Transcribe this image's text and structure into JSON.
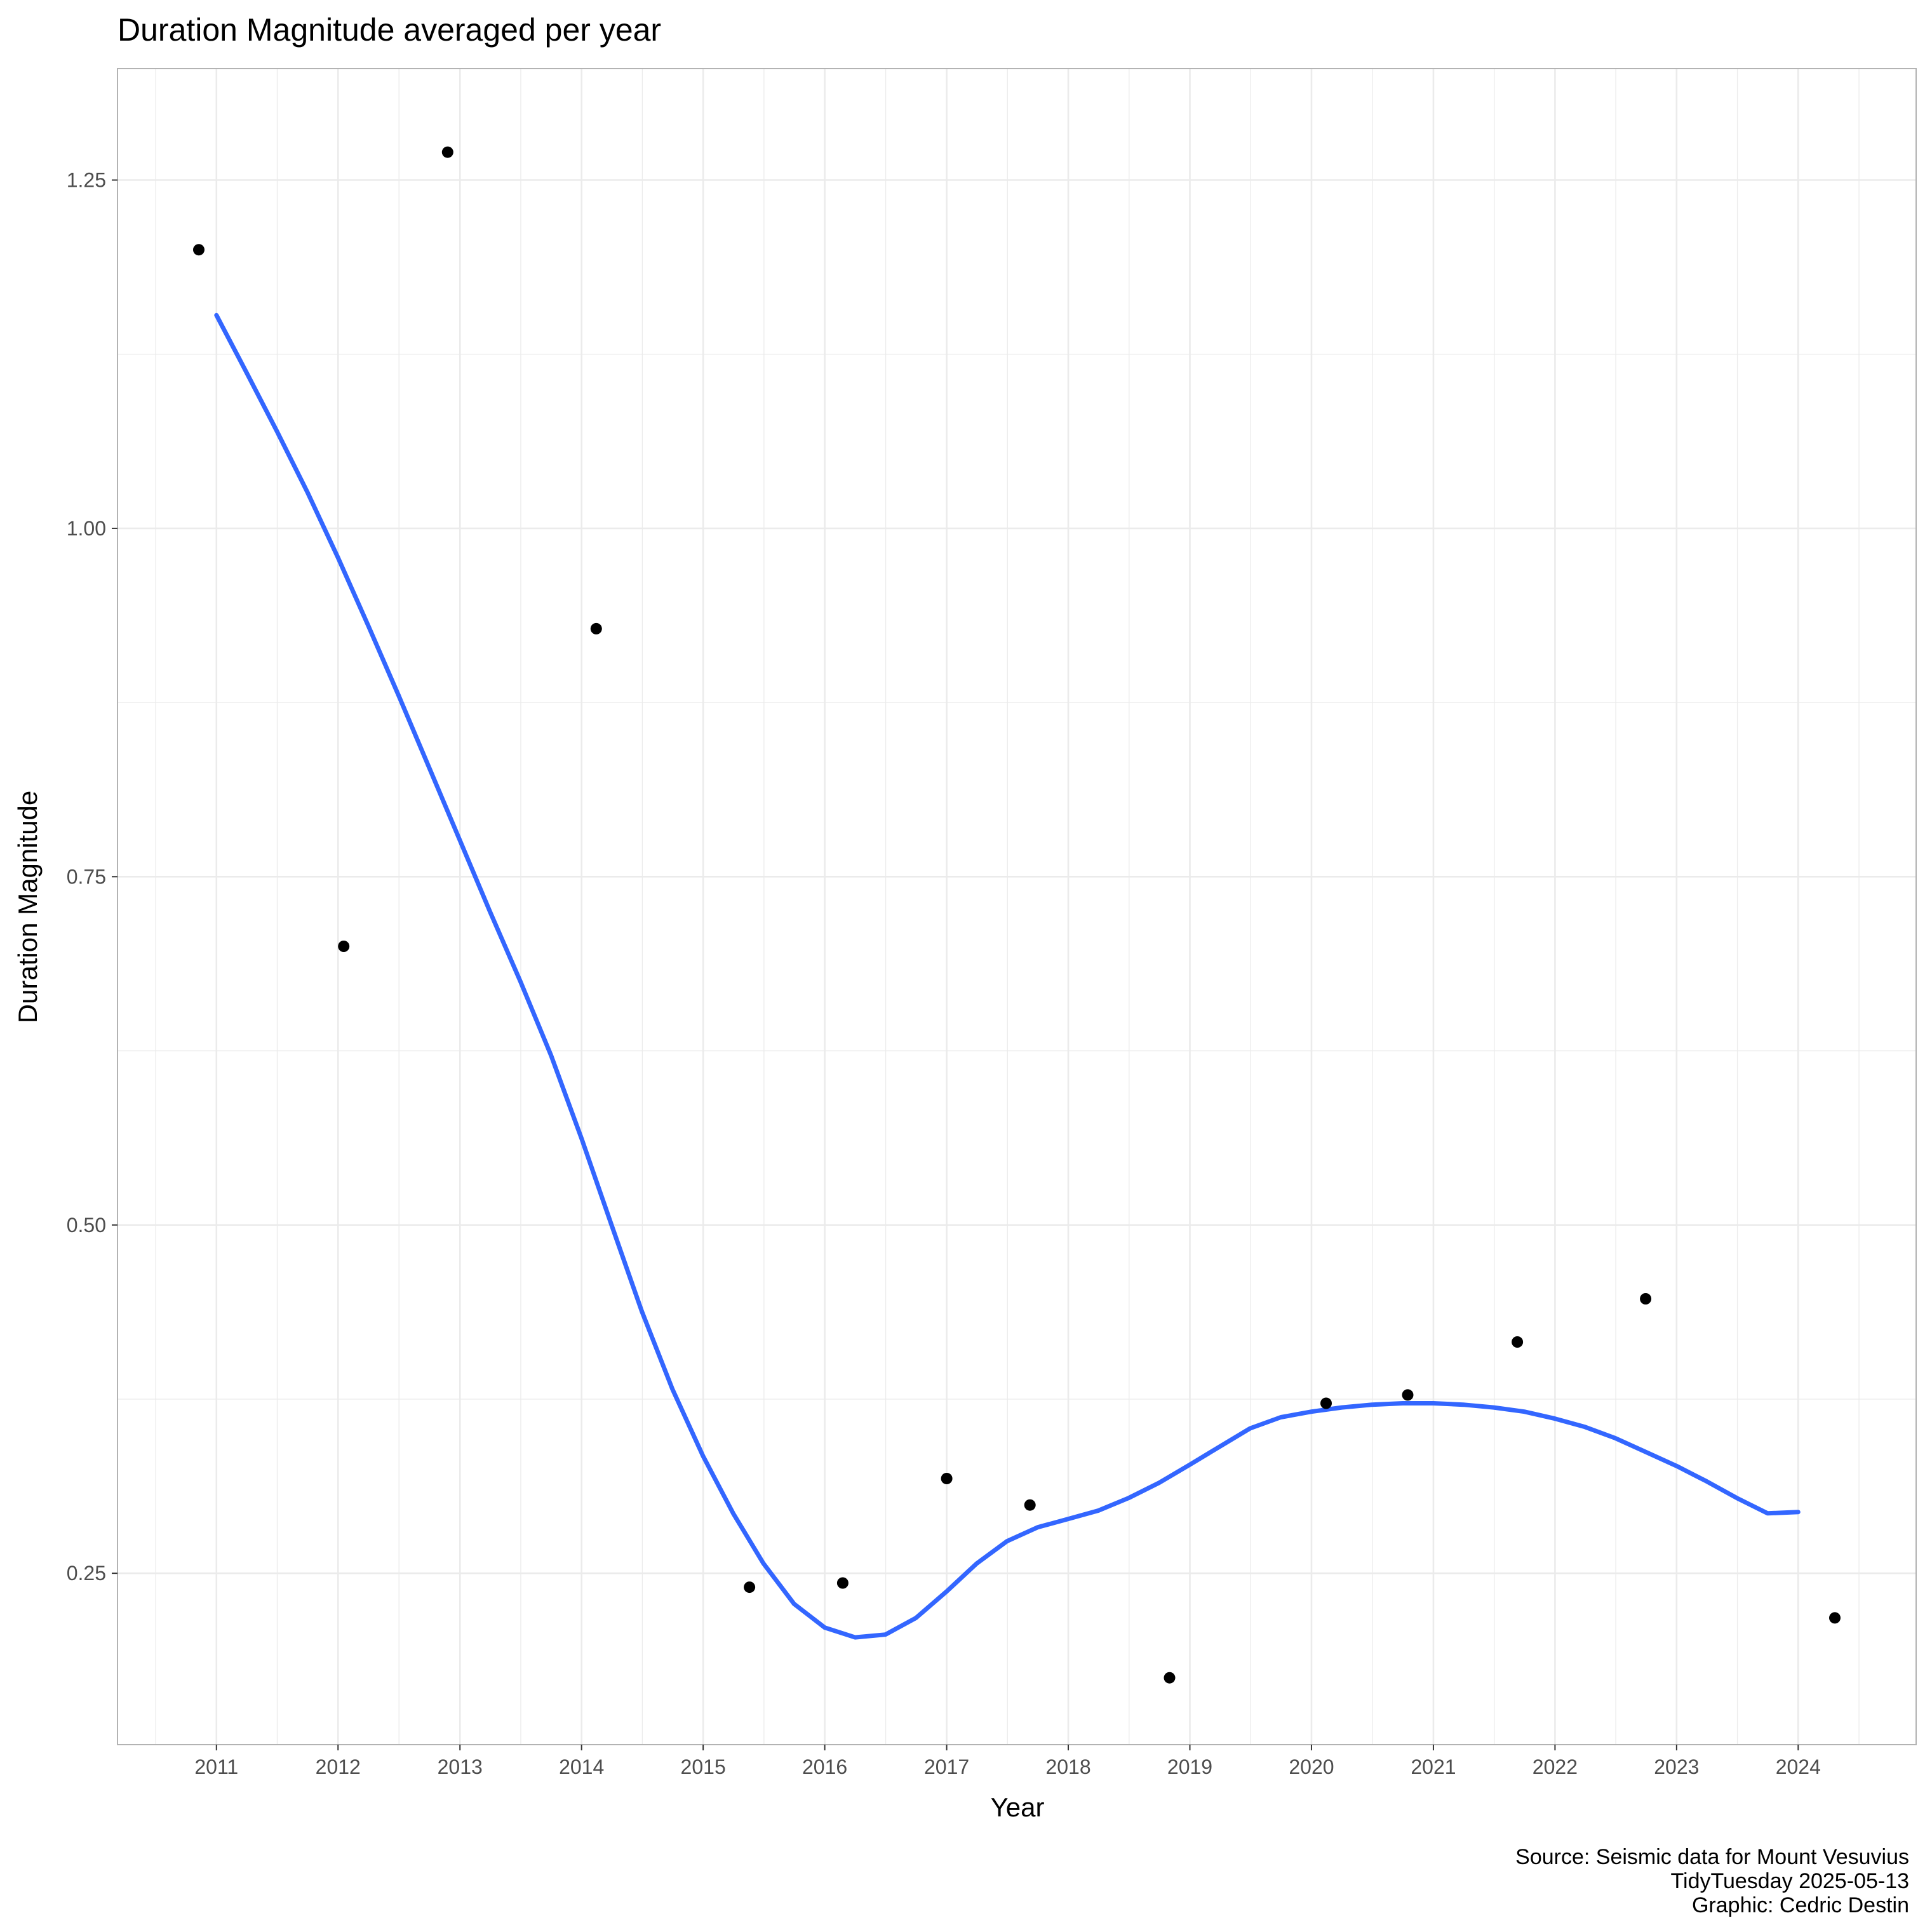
{
  "chart_data": {
    "type": "scatter",
    "title": "Duration Magnitude averaged per year",
    "xlabel": "Year",
    "ylabel": "Duration Magnitude",
    "x_ticks": [
      "2011",
      "2012",
      "2013",
      "2014",
      "2015",
      "2016",
      "2017",
      "2018",
      "2019",
      "2020",
      "2021",
      "2022",
      "2023",
      "2024"
    ],
    "y_ticks": [
      "0.25",
      "0.50",
      "0.75",
      "1.00",
      "1.25"
    ],
    "xlim": [
      "2010-03-10",
      "2024-12-20"
    ],
    "ylim": [
      0.127,
      1.33
    ],
    "grid": true,
    "caption": [
      "Source: Seismic data for Mount Vesuvius",
      "TidyTuesday 2025-05-13",
      "Graphic: Cedric Destin"
    ],
    "colors": {
      "points": "#000000",
      "smooth": "#3366FF",
      "grid": "#ebebeb",
      "panel_border": "#b3b3b3"
    },
    "points": [
      {
        "x": "2010-11-09",
        "y": 1.2
      },
      {
        "x": "2012-01-18",
        "y": 0.7
      },
      {
        "x": "2012-11-25",
        "y": 1.27
      },
      {
        "x": "2014-02-14",
        "y": 0.928
      },
      {
        "x": "2015-05-20",
        "y": 0.24
      },
      {
        "x": "2016-02-24",
        "y": 0.243
      },
      {
        "x": "2017-01-01",
        "y": 0.318
      },
      {
        "x": "2017-09-08",
        "y": 0.299
      },
      {
        "x": "2018-11-01",
        "y": 0.175
      },
      {
        "x": "2020-02-14",
        "y": 0.372
      },
      {
        "x": "2020-10-16",
        "y": 0.378
      },
      {
        "x": "2021-09-10",
        "y": 0.416
      },
      {
        "x": "2022-09-30",
        "y": 0.447
      },
      {
        "x": "2024-04-20",
        "y": 0.218
      }
    ],
    "smooth": {
      "x": [
        "2011-01-01",
        "2011-04-01",
        "2011-07-01",
        "2011-10-01",
        "2012-01-01",
        "2012-04-01",
        "2012-07-01",
        "2012-10-01",
        "2013-01-01",
        "2013-04-01",
        "2013-07-01",
        "2013-10-01",
        "2014-01-01",
        "2014-04-01",
        "2014-07-01",
        "2014-10-01",
        "2015-01-01",
        "2015-04-01",
        "2015-07-01",
        "2015-10-01",
        "2016-01-01",
        "2016-04-01",
        "2016-07-01",
        "2016-10-01",
        "2017-01-01",
        "2017-04-01",
        "2017-07-01",
        "2017-10-01",
        "2018-01-01",
        "2018-04-01",
        "2018-07-01",
        "2018-10-01",
        "2019-01-01",
        "2019-04-01",
        "2019-07-01",
        "2019-10-01",
        "2020-01-01",
        "2020-04-01",
        "2020-07-01",
        "2020-10-01",
        "2021-01-01",
        "2021-04-01",
        "2021-07-01",
        "2021-10-01",
        "2022-01-01",
        "2022-04-01",
        "2022-07-01",
        "2022-10-01",
        "2023-01-01",
        "2023-04-01",
        "2023-07-01",
        "2023-10-01",
        "2024-01-01"
      ],
      "y": [
        1.153,
        1.112,
        1.07,
        1.026,
        0.979,
        0.93,
        0.88,
        0.828,
        0.776,
        0.725,
        0.675,
        0.622,
        0.562,
        0.5,
        0.438,
        0.382,
        0.334,
        0.293,
        0.257,
        0.228,
        0.211,
        0.204,
        0.206,
        0.218,
        0.237,
        0.257,
        0.273,
        0.283,
        0.289,
        0.295,
        0.304,
        0.315,
        0.328,
        0.341,
        0.354,
        0.362,
        0.366,
        0.369,
        0.371,
        0.372,
        0.372,
        0.371,
        0.369,
        0.366,
        0.361,
        0.355,
        0.347,
        0.337,
        0.327,
        0.316,
        0.304,
        0.293,
        0.294
      ]
    }
  }
}
